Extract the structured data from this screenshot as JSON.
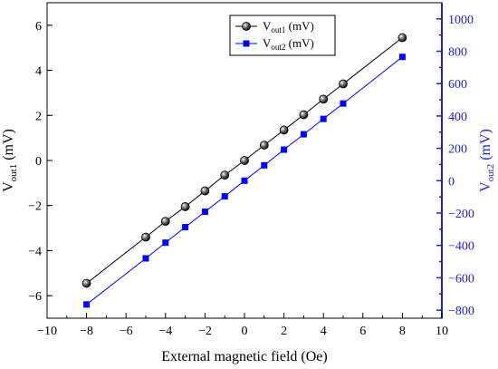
{
  "chart_data": {
    "type": "line",
    "xlabel": "External magnetic field (Oe)",
    "ylabel_left": {
      "main": "V",
      "sub": "out1",
      "unit": " (mV)"
    },
    "ylabel_right": {
      "main": "V",
      "sub": "out2",
      "unit": " (mV)"
    },
    "xlim": [
      -10,
      10
    ],
    "ylim_left": [
      -7,
      7
    ],
    "ylim_right": [
      -850,
      1100
    ],
    "x_ticks": [
      -10,
      -8,
      -6,
      -4,
      -2,
      0,
      2,
      4,
      6,
      8,
      10
    ],
    "x_tick_labels": [
      "−10",
      "−8",
      "−6",
      "−4",
      "−2",
      "0",
      "2",
      "4",
      "6",
      "8",
      "10"
    ],
    "y_left_ticks": [
      -6,
      -4,
      -2,
      0,
      2,
      4,
      6
    ],
    "y_left_tick_labels": [
      "−6",
      "−4",
      "−2",
      "0",
      "2",
      "4",
      "6"
    ],
    "y_right_ticks": [
      -800,
      -600,
      -400,
      -200,
      0,
      200,
      400,
      600,
      800,
      1000
    ],
    "y_right_tick_labels": [
      "−800",
      "−600",
      "−400",
      "−200",
      "0",
      "200",
      "400",
      "600",
      "800",
      "1000"
    ],
    "x": [
      -8,
      -5,
      -4,
      -3,
      -2,
      -1,
      0,
      1,
      2,
      3,
      4,
      5,
      8
    ],
    "series": [
      {
        "name": "V_out1 (mV)",
        "legend": {
          "main": "V",
          "sub": "out1",
          "unit": " (mV)"
        },
        "axis": "left",
        "color": "#000000",
        "marker": "sphere",
        "values": [
          -5.45,
          -3.4,
          -2.7,
          -2.05,
          -1.35,
          -0.65,
          0.0,
          0.68,
          1.35,
          2.03,
          2.72,
          3.4,
          5.45
        ]
      },
      {
        "name": "V_out2 (mV)",
        "legend": {
          "main": "V",
          "sub": "out2",
          "unit": " (mV)"
        },
        "axis": "right",
        "color": "#0000ff",
        "marker": "square",
        "values": [
          -765,
          -480,
          -383,
          -287,
          -192,
          -97,
          0,
          95,
          192,
          287,
          382,
          477,
          765
        ]
      }
    ],
    "legend_position": "top-center",
    "right_axis_color": "#1f1fd6"
  }
}
